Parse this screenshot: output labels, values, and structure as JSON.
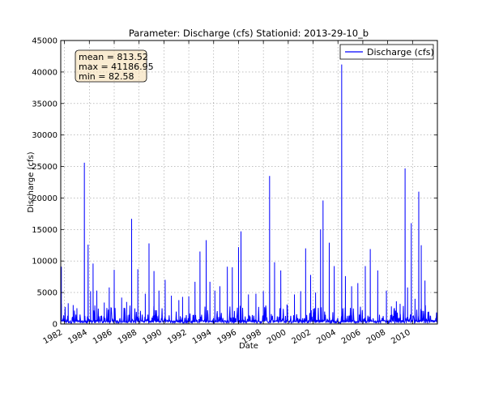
{
  "chart_data": {
    "type": "line",
    "title": "Parameter: Discharge (cfs) Stationid: 2013-29-10_b",
    "xlabel": "Date",
    "ylabel": "Discharge (cfs)",
    "xlim": [
      1981.7,
      2012.0
    ],
    "ylim": [
      0,
      45000
    ],
    "y_ticks": [
      0,
      5000,
      10000,
      15000,
      20000,
      25000,
      30000,
      35000,
      40000,
      45000
    ],
    "x_ticks": [
      "1982",
      "1984",
      "1986",
      "1988",
      "1990",
      "1992",
      "1994",
      "1996",
      "1998",
      "2000",
      "2002",
      "2004",
      "2006",
      "2008",
      "2010"
    ],
    "grid": true,
    "legend": {
      "placement": "top-right",
      "entries": [
        "Discharge (cfs)"
      ]
    },
    "stats": [
      "mean = 813.52",
      "max = 41186.95",
      "min = 82.58"
    ],
    "series": [
      {
        "name": "Discharge (cfs)",
        "color": "#0000ff",
        "peaks": [
          [
            1981.75,
            9100
          ],
          [
            1982.3,
            3300
          ],
          [
            1982.7,
            3000
          ],
          [
            1983.0,
            2500
          ],
          [
            1983.6,
            25600
          ],
          [
            1983.9,
            12600
          ],
          [
            1984.1,
            5200
          ],
          [
            1984.3,
            9600
          ],
          [
            1984.6,
            5300
          ],
          [
            1985.2,
            3400
          ],
          [
            1985.6,
            5800
          ],
          [
            1986.0,
            8600
          ],
          [
            1986.6,
            4200
          ],
          [
            1987.0,
            3500
          ],
          [
            1987.4,
            16700
          ],
          [
            1987.9,
            8700
          ],
          [
            1988.5,
            4800
          ],
          [
            1988.8,
            12800
          ],
          [
            1989.2,
            8400
          ],
          [
            1989.6,
            5300
          ],
          [
            1990.1,
            7000
          ],
          [
            1990.6,
            4500
          ],
          [
            1991.2,
            3800
          ],
          [
            1991.5,
            4300
          ],
          [
            1992.0,
            4400
          ],
          [
            1992.5,
            6700
          ],
          [
            1992.9,
            11500
          ],
          [
            1993.4,
            13300
          ],
          [
            1993.7,
            6700
          ],
          [
            1994.1,
            5300
          ],
          [
            1994.5,
            6000
          ],
          [
            1995.1,
            9100
          ],
          [
            1995.5,
            9000
          ],
          [
            1996.0,
            12200
          ],
          [
            1996.2,
            14700
          ],
          [
            1996.8,
            4700
          ],
          [
            1997.4,
            4800
          ],
          [
            1998.0,
            5200
          ],
          [
            1998.5,
            23500
          ],
          [
            1998.9,
            9800
          ],
          [
            1999.4,
            8500
          ],
          [
            1999.9,
            3100
          ],
          [
            2000.5,
            4700
          ],
          [
            2001.0,
            5200
          ],
          [
            2001.4,
            12000
          ],
          [
            2001.8,
            7800
          ],
          [
            2002.2,
            5000
          ],
          [
            2002.6,
            15000
          ],
          [
            2002.8,
            19600
          ],
          [
            2003.3,
            12900
          ],
          [
            2003.7,
            9200
          ],
          [
            2004.3,
            41187
          ],
          [
            2004.6,
            7600
          ],
          [
            2005.1,
            6000
          ],
          [
            2005.6,
            6500
          ],
          [
            2006.2,
            9200
          ],
          [
            2006.6,
            11900
          ],
          [
            2007.2,
            8500
          ],
          [
            2007.9,
            5300
          ],
          [
            2008.3,
            2800
          ],
          [
            2008.7,
            3600
          ],
          [
            2009.0,
            3200
          ],
          [
            2009.4,
            24700
          ],
          [
            2009.6,
            5800
          ],
          [
            2009.9,
            16000
          ],
          [
            2010.2,
            4000
          ],
          [
            2010.5,
            21000
          ],
          [
            2010.7,
            12500
          ],
          [
            2011.0,
            6900
          ]
        ]
      }
    ]
  }
}
